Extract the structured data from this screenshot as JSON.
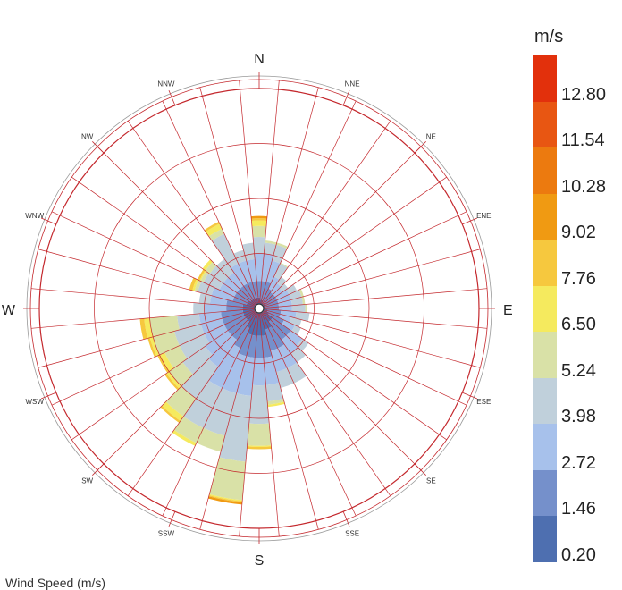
{
  "chart_data": {
    "type": "wind-rose",
    "title": "",
    "caption": "Wind Speed (m/s)",
    "legend_title": "m/s",
    "legend_labels": [
      "12.80",
      "11.54",
      "10.28",
      "9.02",
      "7.76",
      "6.50",
      "5.24",
      "3.98",
      "2.72",
      "1.46",
      "0.20"
    ],
    "bins": [
      {
        "lower": 0.2,
        "upper": 1.46,
        "color": "#4E6FB0"
      },
      {
        "lower": 1.46,
        "upper": 2.72,
        "color": "#7590CB"
      },
      {
        "lower": 2.72,
        "upper": 3.98,
        "color": "#A7C1EB"
      },
      {
        "lower": 3.98,
        "upper": 5.24,
        "color": "#C0D0DB"
      },
      {
        "lower": 5.24,
        "upper": 6.5,
        "color": "#D9E1A7"
      },
      {
        "lower": 6.5,
        "upper": 7.76,
        "color": "#F5EA5E"
      },
      {
        "lower": 7.76,
        "upper": 9.02,
        "color": "#F6C83E"
      },
      {
        "lower": 9.02,
        "upper": 10.28,
        "color": "#F09A12"
      },
      {
        "lower": 10.28,
        "upper": 11.54,
        "color": "#EC7A0F"
      },
      {
        "lower": 11.54,
        "upper": 12.8,
        "color": "#E85612"
      },
      {
        "lower": 12.8,
        "upper": null,
        "color": "#E2300C"
      }
    ],
    "sectors": 36,
    "sector_width_deg": 10,
    "radial_max": 20,
    "ring_values": [
      5,
      10,
      15
    ],
    "directions": [
      "N",
      "E",
      "S",
      "W"
    ],
    "minor_directions": [
      "NNE",
      "NE",
      "ENE",
      "ESE",
      "SE",
      "SSE",
      "SSW",
      "SW",
      "WSW",
      "WNW",
      "NW",
      "NNW"
    ],
    "cumulative_frequency": [
      [
        1.0,
        2.5,
        5.0,
        6.5,
        7.5,
        8.0,
        8.2,
        8.4
      ],
      [
        0.8,
        2.5,
        5.0,
        6.0,
        6.2
      ],
      [
        0.8,
        2.5,
        4.5,
        6.0,
        6.2
      ],
      [
        0.6,
        2.0,
        3.2,
        4.5,
        4.6
      ],
      [
        0.6,
        1.8,
        2.8,
        3.5
      ],
      [
        0.6,
        1.8,
        2.6,
        3.2
      ],
      [
        0.6,
        1.8,
        3.0,
        3.8
      ],
      [
        0.6,
        1.8,
        3.0,
        4.0,
        4.2
      ],
      [
        0.6,
        1.8,
        3.0,
        4.0,
        4.2
      ],
      [
        0.6,
        1.8,
        3.0,
        4.2,
        4.4
      ],
      [
        0.8,
        2.0,
        3.4,
        4.6
      ],
      [
        0.8,
        2.0,
        3.0,
        4.0
      ],
      [
        1.0,
        2.5,
        3.6,
        4.2
      ],
      [
        1.5,
        3.5,
        4.8,
        5.5
      ],
      [
        1.5,
        3.5,
        5.0,
        6.0
      ],
      [
        2.0,
        4.0,
        6.0,
        7.5
      ],
      [
        2.0,
        4.0,
        6.0,
        7.5
      ],
      [
        2.5,
        4.5,
        7.0,
        8.5,
        8.8,
        9.0
      ],
      [
        2.5,
        4.5,
        7.0,
        10.5,
        12.5,
        12.6,
        12.8
      ],
      [
        2.5,
        4.5,
        8.0,
        14.0,
        17.5,
        17.6,
        17.7,
        17.9
      ],
      [
        2.5,
        4.5,
        8.0,
        12.0,
        13.5
      ],
      [
        2.0,
        4.0,
        8.0,
        12.0,
        13.5,
        13.8
      ],
      [
        1.5,
        3.5,
        6.5,
        10.0,
        12.0,
        12.5,
        12.7
      ],
      [
        1.5,
        3.5,
        6.0,
        8.5,
        10.0,
        10.3,
        10.5
      ],
      [
        1.5,
        3.5,
        5.5,
        8.0,
        9.5,
        10.0,
        10.2
      ],
      [
        1.5,
        3.5,
        5.5,
        8.0,
        10.0,
        10.3,
        10.5
      ],
      [
        1.5,
        3.5,
        5.5,
        7.5,
        10.0,
        10.5,
        10.9
      ],
      [
        1.5,
        3.0,
        5.0,
        6.0
      ],
      [
        1.5,
        3.0,
        4.5,
        5.5
      ],
      [
        1.2,
        2.5,
        4.5,
        5.8,
        6.1,
        6.3,
        6.6
      ],
      [
        1.2,
        2.5,
        4.0,
        5.6,
        5.9,
        6.0,
        6.2
      ],
      [
        1.0,
        2.5,
        4.0,
        5.5,
        6.0,
        6.3
      ],
      [
        1.0,
        2.5,
        4.0,
        5.5
      ],
      [
        1.0,
        2.5,
        4.5,
        7.5,
        8.0,
        8.5,
        8.7
      ],
      [
        1.0,
        2.5,
        4.5,
        5.5
      ],
      [
        1.0,
        2.5,
        4.5,
        6.0
      ]
    ]
  }
}
